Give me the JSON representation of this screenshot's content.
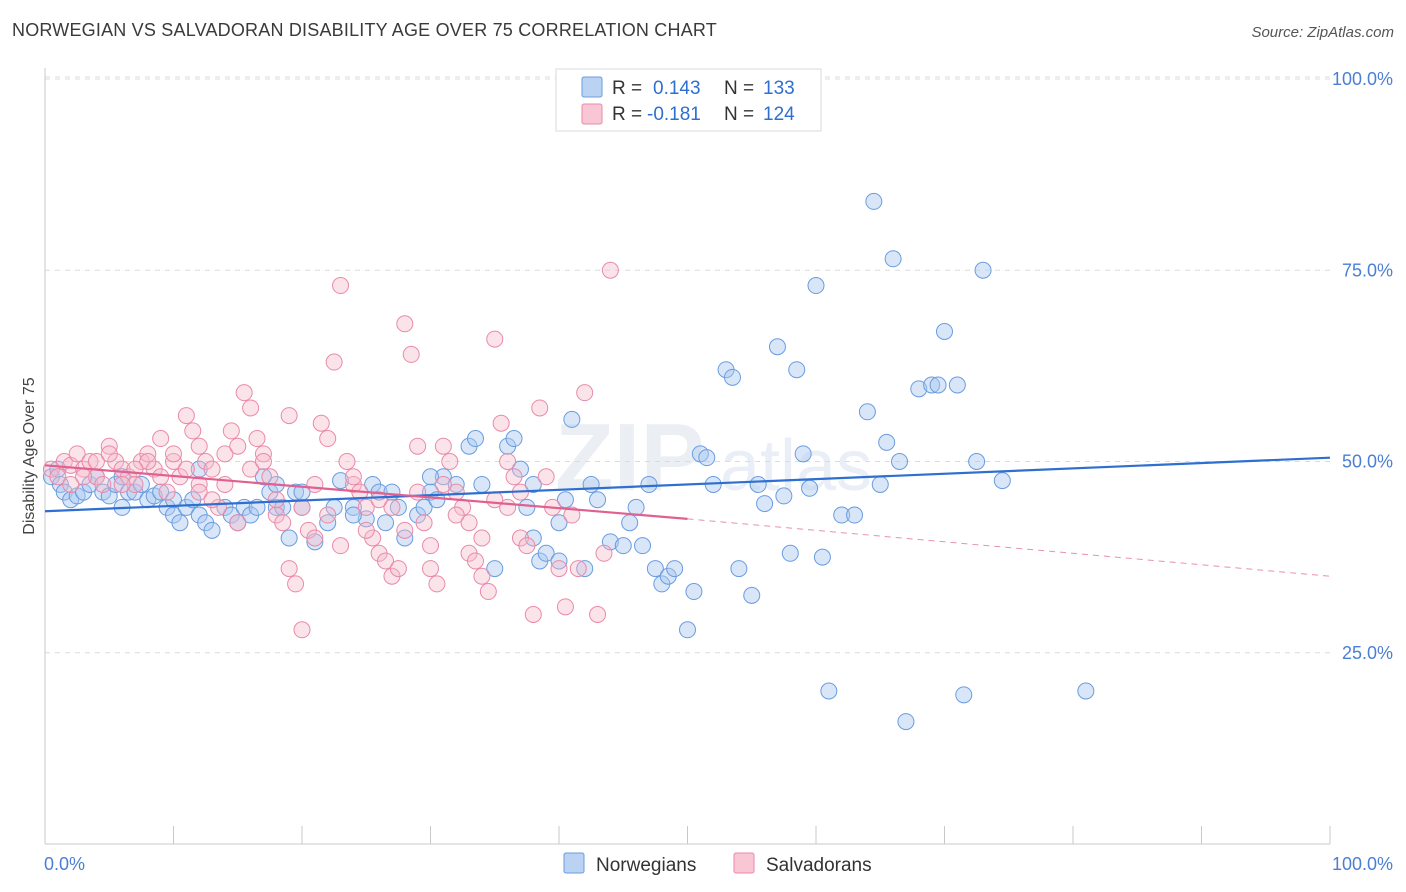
{
  "title": "NORWEGIAN VS SALVADORAN DISABILITY AGE OVER 75 CORRELATION CHART",
  "source": "Source: ZipAtlas.com",
  "watermark": {
    "part1": "ZIP",
    "part2": "atlas"
  },
  "colors": {
    "norwegians_fill": "#a9c8f0",
    "norwegians_stroke": "#6a9ce0",
    "norwegians_line": "#2e6fd0",
    "salvadorans_fill": "#f6b8cb",
    "salvadorans_stroke": "#ea8aa9",
    "salvadorans_line": "#e0608f",
    "tick_text": "#4a7fd4",
    "grid": "#dcdcdc"
  },
  "legend": {
    "rows": [
      {
        "r_label": "R =",
        "r_value": "0.143",
        "n_label": "N =",
        "n_value": "133"
      },
      {
        "r_label": "R =",
        "r_value": "-0.181",
        "n_label": "N =",
        "n_value": "124"
      }
    ]
  },
  "chart_data": {
    "type": "scatter",
    "title": "NORWEGIAN VS SALVADORAN DISABILITY AGE OVER 75 CORRELATION CHART",
    "xlabel": "",
    "ylabel": "Disability Age Over 75",
    "xlim": [
      0,
      100
    ],
    "ylim": [
      0,
      100
    ],
    "x_tick_labels": [
      "0.0%",
      "100.0%"
    ],
    "y_tick_labels": [
      "25.0%",
      "50.0%",
      "75.0%",
      "100.0%"
    ],
    "y_ticks": [
      25,
      50,
      75,
      100
    ],
    "grid": true,
    "legend_position": "bottom",
    "series": [
      {
        "name": "Norwegians",
        "r": 0.143,
        "n": 133,
        "trend": {
          "x": [
            0,
            100
          ],
          "y": [
            43.5,
            50.5
          ]
        },
        "points": [
          [
            0.5,
            48
          ],
          [
            1,
            49
          ],
          [
            1.2,
            47
          ],
          [
            1.5,
            46
          ],
          [
            2,
            45
          ],
          [
            2.5,
            45.5
          ],
          [
            3,
            46
          ],
          [
            3.5,
            47
          ],
          [
            4,
            48
          ],
          [
            4.5,
            46
          ],
          [
            5,
            45.5
          ],
          [
            5.5,
            47
          ],
          [
            6,
            48
          ],
          [
            6.5,
            46
          ],
          [
            7,
            46
          ],
          [
            7.5,
            47
          ],
          [
            8,
            45
          ],
          [
            8.5,
            45.5
          ],
          [
            9,
            46
          ],
          [
            9.5,
            44
          ],
          [
            10,
            43
          ],
          [
            10.5,
            42
          ],
          [
            11,
            44
          ],
          [
            11.5,
            45
          ],
          [
            12,
            43
          ],
          [
            12.5,
            42
          ],
          [
            13,
            41
          ],
          [
            14,
            44
          ],
          [
            14.5,
            43
          ],
          [
            15,
            42
          ],
          [
            15.5,
            44
          ],
          [
            16,
            43
          ],
          [
            16.5,
            44
          ],
          [
            17,
            48
          ],
          [
            17.5,
            46
          ],
          [
            18,
            44
          ],
          [
            18.5,
            44
          ],
          [
            19,
            40
          ],
          [
            19.5,
            46
          ],
          [
            20,
            44
          ],
          [
            21,
            39.5
          ],
          [
            22,
            42
          ],
          [
            22.5,
            44
          ],
          [
            23,
            47.5
          ],
          [
            24,
            44
          ],
          [
            25,
            42.5
          ],
          [
            25.5,
            47
          ],
          [
            26,
            46
          ],
          [
            26.5,
            42
          ],
          [
            27,
            46
          ],
          [
            27.5,
            44
          ],
          [
            28,
            40
          ],
          [
            29,
            43
          ],
          [
            29.5,
            44
          ],
          [
            30,
            46
          ],
          [
            30.5,
            45
          ],
          [
            31,
            48
          ],
          [
            32,
            47
          ],
          [
            33,
            52
          ],
          [
            33.5,
            53
          ],
          [
            34,
            47
          ],
          [
            35,
            36
          ],
          [
            36,
            52
          ],
          [
            36.5,
            53
          ],
          [
            37,
            49
          ],
          [
            37.5,
            44
          ],
          [
            38,
            40
          ],
          [
            38.5,
            37
          ],
          [
            39,
            38
          ],
          [
            40,
            37
          ],
          [
            40.5,
            45
          ],
          [
            41,
            55.5
          ],
          [
            42,
            36
          ],
          [
            42.5,
            47
          ],
          [
            43,
            45
          ],
          [
            44,
            39.5
          ],
          [
            45,
            39
          ],
          [
            45.5,
            42
          ],
          [
            46,
            44
          ],
          [
            46.5,
            39
          ],
          [
            47,
            47
          ],
          [
            47.5,
            36
          ],
          [
            48,
            34
          ],
          [
            48.5,
            35
          ],
          [
            49,
            36
          ],
          [
            50,
            28
          ],
          [
            50.5,
            33
          ],
          [
            51,
            51
          ],
          [
            51.5,
            50.5
          ],
          [
            52,
            47
          ],
          [
            53,
            62
          ],
          [
            53.5,
            61
          ],
          [
            54,
            36
          ],
          [
            55,
            32.5
          ],
          [
            55.5,
            47
          ],
          [
            56,
            44.5
          ],
          [
            57,
            65
          ],
          [
            57.5,
            45.5
          ],
          [
            58,
            38
          ],
          [
            58.5,
            62
          ],
          [
            59,
            51
          ],
          [
            59.5,
            46.5
          ],
          [
            60,
            73
          ],
          [
            60.5,
            37.5
          ],
          [
            61,
            20
          ],
          [
            62,
            43
          ],
          [
            63,
            43
          ],
          [
            64,
            56.5
          ],
          [
            64.5,
            84
          ],
          [
            65,
            47
          ],
          [
            65.5,
            52.5
          ],
          [
            66,
            76.5
          ],
          [
            66.5,
            50
          ],
          [
            67,
            16
          ],
          [
            68,
            59.5
          ],
          [
            69,
            60
          ],
          [
            69.5,
            60
          ],
          [
            70,
            67
          ],
          [
            71,
            60
          ],
          [
            71.5,
            19.5
          ],
          [
            72.5,
            50
          ],
          [
            73,
            75
          ],
          [
            74.5,
            47.5
          ],
          [
            81,
            20
          ],
          [
            40,
            42
          ],
          [
            38,
            47
          ],
          [
            30,
            48
          ],
          [
            20,
            46
          ],
          [
            10,
            45
          ],
          [
            6,
            44
          ],
          [
            12,
            49
          ],
          [
            18,
            47
          ],
          [
            24,
            43
          ]
        ]
      },
      {
        "name": "Salvadorans",
        "r": -0.181,
        "n": 124,
        "trend": {
          "x": [
            0,
            50
          ],
          "y": [
            49.5,
            42.5
          ]
        },
        "trend_extension": {
          "x": [
            50,
            100
          ],
          "y": [
            42.5,
            35
          ]
        },
        "points": [
          [
            0.5,
            49
          ],
          [
            1,
            48
          ],
          [
            1.5,
            50
          ],
          [
            2,
            49.5
          ],
          [
            2.5,
            51
          ],
          [
            3,
            49
          ],
          [
            3.5,
            50
          ],
          [
            4,
            48
          ],
          [
            4.5,
            47
          ],
          [
            5,
            52
          ],
          [
            5.5,
            50
          ],
          [
            6,
            49
          ],
          [
            6.5,
            48
          ],
          [
            7,
            47
          ],
          [
            7.5,
            50
          ],
          [
            8,
            51
          ],
          [
            8.5,
            49
          ],
          [
            9,
            53
          ],
          [
            9.5,
            46
          ],
          [
            10,
            50
          ],
          [
            10.5,
            48
          ],
          [
            11,
            56
          ],
          [
            11.5,
            54
          ],
          [
            12,
            52
          ],
          [
            12.5,
            50
          ],
          [
            13,
            49
          ],
          [
            13.5,
            44
          ],
          [
            14,
            47
          ],
          [
            14.5,
            54
          ],
          [
            15,
            42
          ],
          [
            15.5,
            59
          ],
          [
            16,
            57
          ],
          [
            16.5,
            53
          ],
          [
            17,
            51
          ],
          [
            17.5,
            48
          ],
          [
            18,
            43
          ],
          [
            18.5,
            42
          ],
          [
            19,
            36
          ],
          [
            19.5,
            34
          ],
          [
            20,
            28
          ],
          [
            20.5,
            41
          ],
          [
            21,
            40
          ],
          [
            21.5,
            55
          ],
          [
            22,
            53
          ],
          [
            22.5,
            63
          ],
          [
            23,
            73
          ],
          [
            23.5,
            50
          ],
          [
            24,
            47
          ],
          [
            24.5,
            46
          ],
          [
            25,
            44
          ],
          [
            25.5,
            40
          ],
          [
            26,
            38
          ],
          [
            26.5,
            37
          ],
          [
            27,
            35
          ],
          [
            27.5,
            36
          ],
          [
            28,
            68
          ],
          [
            28.5,
            64
          ],
          [
            29,
            46
          ],
          [
            29.5,
            42
          ],
          [
            30,
            36
          ],
          [
            30.5,
            34
          ],
          [
            31,
            52
          ],
          [
            31.5,
            50
          ],
          [
            32,
            46
          ],
          [
            32.5,
            44
          ],
          [
            33,
            38
          ],
          [
            33.5,
            37
          ],
          [
            34,
            35
          ],
          [
            34.5,
            33
          ],
          [
            35,
            66
          ],
          [
            35.5,
            55
          ],
          [
            36,
            50
          ],
          [
            36.5,
            48
          ],
          [
            37,
            40
          ],
          [
            37.5,
            39
          ],
          [
            38,
            30
          ],
          [
            38.5,
            57
          ],
          [
            39,
            48
          ],
          [
            39.5,
            44
          ],
          [
            40,
            36
          ],
          [
            40.5,
            31
          ],
          [
            41,
            43
          ],
          [
            41.5,
            36
          ],
          [
            42,
            59
          ],
          [
            43,
            30
          ],
          [
            43.5,
            38
          ],
          [
            44,
            75
          ],
          [
            12,
            47
          ],
          [
            14,
            51
          ],
          [
            16,
            49
          ],
          [
            18,
            45
          ],
          [
            20,
            44
          ],
          [
            22,
            43
          ],
          [
            24,
            48
          ],
          [
            26,
            45
          ],
          [
            28,
            41
          ],
          [
            30,
            39
          ],
          [
            32,
            43
          ],
          [
            34,
            40
          ],
          [
            36,
            44
          ],
          [
            8,
            50
          ],
          [
            9,
            48
          ],
          [
            10,
            51
          ],
          [
            11,
            49
          ],
          [
            12,
            46
          ],
          [
            13,
            45
          ],
          [
            15,
            52
          ],
          [
            17,
            50
          ],
          [
            19,
            56
          ],
          [
            21,
            47
          ],
          [
            23,
            39
          ],
          [
            25,
            41
          ],
          [
            27,
            44
          ],
          [
            29,
            52
          ],
          [
            31,
            47
          ],
          [
            33,
            42
          ],
          [
            35,
            45
          ],
          [
            37,
            46
          ],
          [
            3,
            48
          ],
          [
            4,
            50
          ],
          [
            5,
            51
          ],
          [
            6,
            47
          ],
          [
            7,
            49
          ],
          [
            2,
            47
          ]
        ]
      }
    ]
  }
}
